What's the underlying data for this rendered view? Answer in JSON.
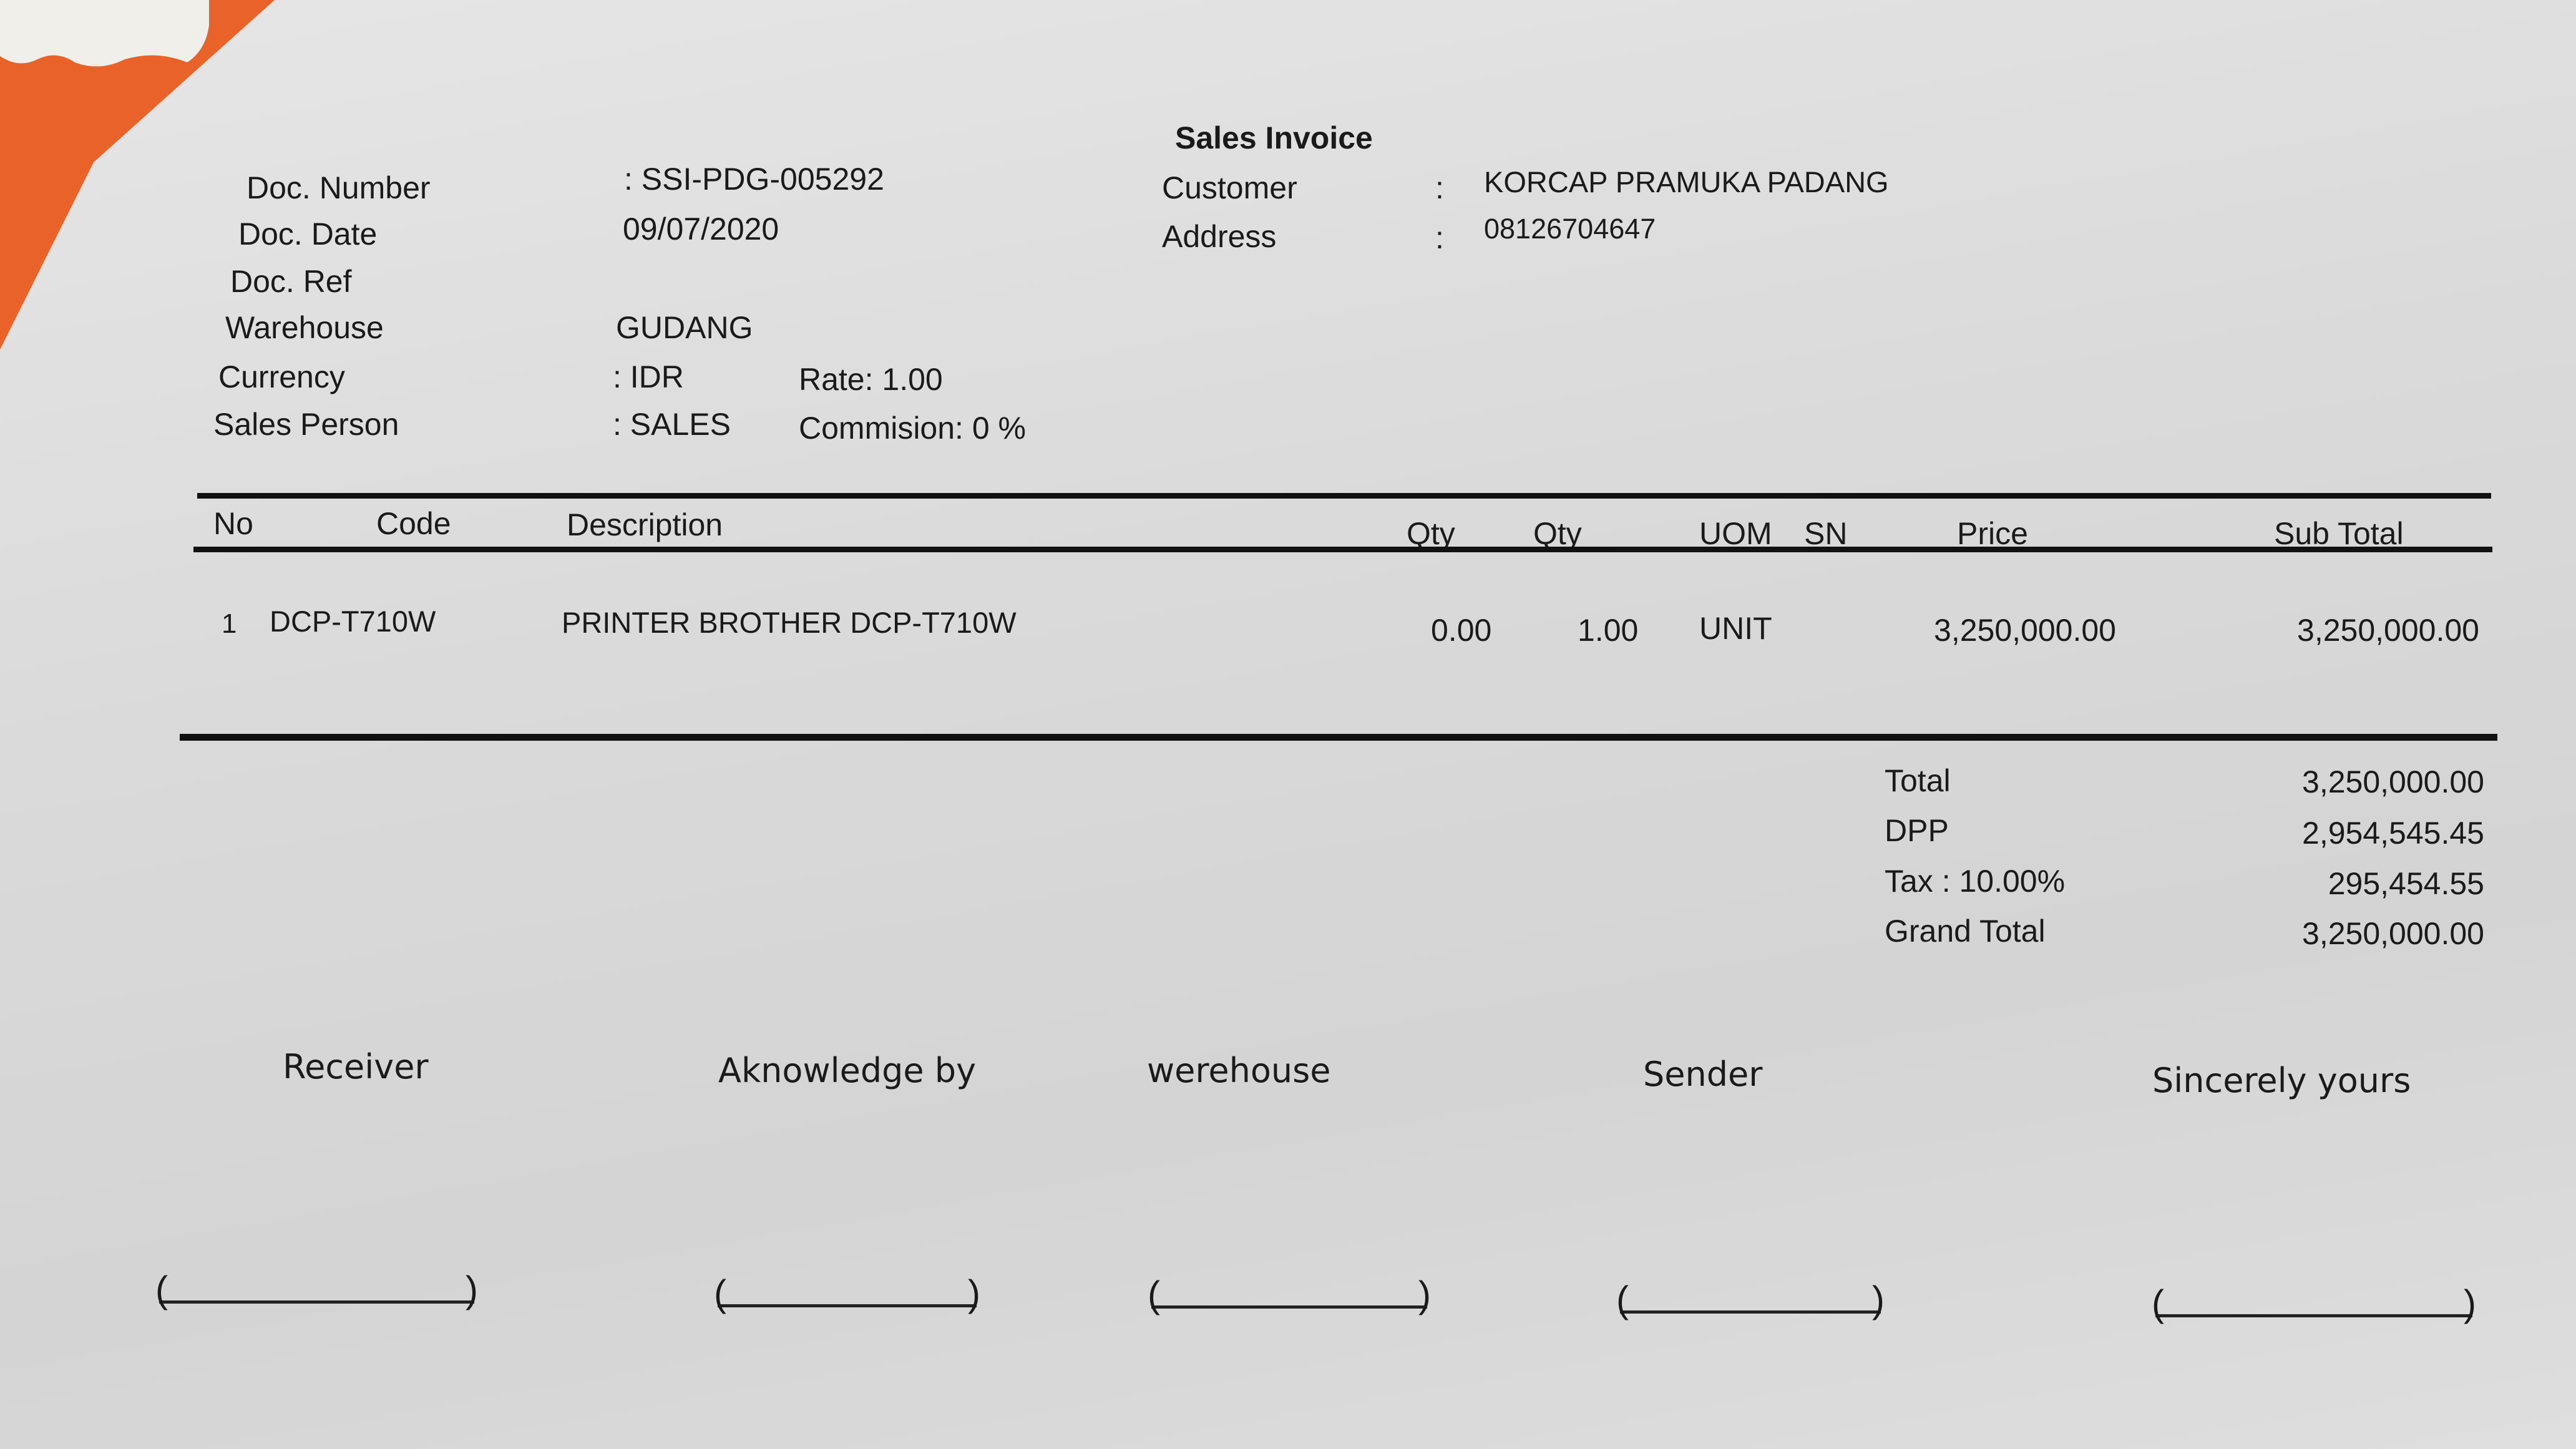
{
  "title": "Sales Invoice",
  "header": {
    "doc_number_label": "Doc. Number",
    "doc_number": ": SSI-PDG-005292",
    "doc_date_label": "Doc. Date",
    "doc_date": "09/07/2020",
    "doc_ref_label": "Doc. Ref",
    "warehouse_label": "Warehouse",
    "warehouse": "GUDANG",
    "currency_label": "Currency",
    "currency": ": IDR",
    "rate": "Rate: 1.00",
    "sales_person_label": "Sales Person",
    "sales_person": ": SALES",
    "commission": "Commision: 0 %",
    "customer_label": "Customer",
    "customer": "KORCAP PRAMUKA PADANG",
    "address_label": "Address",
    "address": "08126704647",
    "colon": ":"
  },
  "table": {
    "columns": [
      "No",
      "Code",
      "Description",
      "Qty",
      "Qty",
      "UOM",
      "SN",
      "Price",
      "Sub Total"
    ],
    "rows": [
      {
        "no": "1",
        "code": "DCP-T710W",
        "description": "PRINTER BROTHER DCP-T710W",
        "qty1": "0.00",
        "qty2": "1.00",
        "uom": "UNIT",
        "sn": "",
        "price": "3,250,000.00",
        "subtotal": "3,250,000.00"
      }
    ]
  },
  "totals": [
    {
      "label": "Total",
      "value": "3,250,000.00"
    },
    {
      "label": "DPP",
      "value": "2,954,545.45"
    },
    {
      "label": "Tax : 10.00%",
      "value": "295,454.55"
    },
    {
      "label": "Grand Total",
      "value": "3,250,000.00"
    }
  ],
  "signatures": [
    "Receiver",
    "Aknowledge by",
    "werehouse",
    "Sender",
    "Sincerely yours"
  ],
  "colors": {
    "paper": "#dcdcdc",
    "folder": "#e8622a"
  }
}
